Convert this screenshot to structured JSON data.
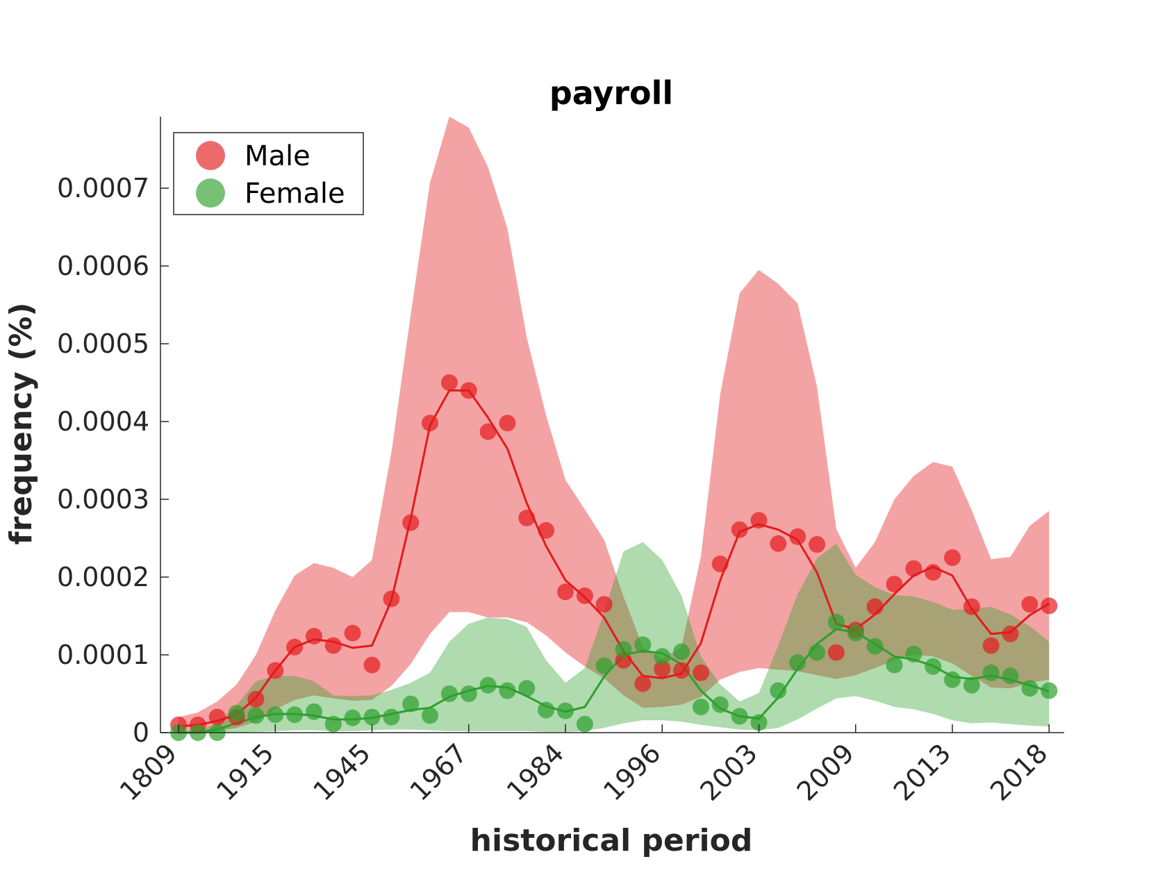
{
  "chart_data": {
    "type": "line",
    "title": "payroll",
    "xlabel": "historical period",
    "ylabel": "frequency (%)",
    "ylim": [
      0,
      0.00079
    ],
    "yticks": [
      {
        "value": 0,
        "label": "0"
      },
      {
        "value": 0.0001,
        "label": "0.0001"
      },
      {
        "value": 0.0002,
        "label": "0.0002"
      },
      {
        "value": 0.0003,
        "label": "0.0003"
      },
      {
        "value": 0.0004,
        "label": "0.0004"
      },
      {
        "value": 0.0005,
        "label": "0.0005"
      },
      {
        "value": 0.0006,
        "label": "0.0006"
      },
      {
        "value": 0.0007,
        "label": "0.0007"
      }
    ],
    "xticks": [
      {
        "index": 0,
        "label": "1809"
      },
      {
        "index": 5,
        "label": "1915"
      },
      {
        "index": 10,
        "label": "1945"
      },
      {
        "index": 15,
        "label": "1967"
      },
      {
        "index": 20,
        "label": "1984"
      },
      {
        "index": 25,
        "label": "1996"
      },
      {
        "index": 30,
        "label": "2003"
      },
      {
        "index": 35,
        "label": "2009"
      },
      {
        "index": 40,
        "label": "2013"
      },
      {
        "index": 45,
        "label": "2018"
      }
    ],
    "grid": false,
    "legend_position": "top-left",
    "series": [
      {
        "name": "Male",
        "color": "#e41a1c",
        "fill_color": "#f4a3a4",
        "points": [
          1e-05,
          1e-05,
          2e-05,
          2e-05,
          4.3e-05,
          8e-05,
          0.00011,
          0.000124,
          0.000112,
          0.000128,
          8.7e-05,
          0.000172,
          0.00027,
          0.000398,
          0.00045,
          0.00044,
          0.000387,
          0.000398,
          0.000276,
          0.00026,
          0.000181,
          0.000176,
          0.000165,
          9.3e-05,
          6.3e-05,
          8.2e-05,
          8e-05,
          7.7e-05,
          0.000217,
          0.000261,
          0.000273,
          0.000243,
          0.000252,
          0.000242,
          0.000103,
          0.000132,
          0.000162,
          0.000191,
          0.000211,
          0.000206,
          0.000225,
          0.000162,
          0.000112,
          0.000127,
          0.000165,
          0.000163
        ],
        "line": [
          8e-06,
          1e-05,
          1.5e-05,
          2.3e-05,
          4.5e-05,
          8e-05,
          0.00011,
          0.00012,
          0.000117,
          0.000109,
          0.000112,
          0.00017,
          0.000275,
          0.000395,
          0.00044,
          0.00044,
          0.000405,
          0.000365,
          0.000295,
          0.00024,
          0.000196,
          0.000174,
          0.000148,
          0.000105,
          7.3e-05,
          7e-05,
          7.6e-05,
          0.000115,
          0.000196,
          0.000258,
          0.000268,
          0.000261,
          0.000248,
          0.000206,
          0.00014,
          0.000133,
          0.000152,
          0.000178,
          0.000202,
          0.000213,
          0.000202,
          0.000159,
          0.000127,
          0.000129,
          0.000151,
          0.000166
        ],
        "band_upper": [
          2e-05,
          2.6e-05,
          4e-05,
          6.2e-05,
          0.0001,
          0.000157,
          0.000202,
          0.000218,
          0.000212,
          0.0002,
          0.000222,
          0.00036,
          0.000537,
          0.000707,
          0.000792,
          0.000778,
          0.000727,
          0.000648,
          0.000508,
          0.000408,
          0.000325,
          0.000287,
          0.000248,
          0.000175,
          0.00011,
          9.5e-05,
          0.00011,
          0.000227,
          0.000435,
          0.000565,
          0.000595,
          0.000577,
          0.000552,
          0.000445,
          0.000262,
          0.000212,
          0.000245,
          0.0003,
          0.00033,
          0.000348,
          0.000342,
          0.000286,
          0.000223,
          0.000226,
          0.000266,
          0.000285
        ],
        "band_lower": [
          0,
          0,
          2e-06,
          6e-06,
          1.4e-05,
          3e-05,
          4.2e-05,
          4.8e-05,
          4.4e-05,
          4.1e-05,
          4.2e-05,
          6e-05,
          8.8e-05,
          0.000127,
          0.000155,
          0.000155,
          0.000148,
          0.000148,
          0.000142,
          0.000125,
          0.000103,
          8.5e-05,
          7e-05,
          4.8e-05,
          3.2e-05,
          3.3e-05,
          3.6e-05,
          4.6e-05,
          6.8e-05,
          7.8e-05,
          8.3e-05,
          8.1e-05,
          7.9e-05,
          7.4e-05,
          6.9e-05,
          7.4e-05,
          8.3e-05,
          9.3e-05,
          0.0001,
          9.8e-05,
          8.9e-05,
          7.3e-05,
          5.8e-05,
          5.7e-05,
          6.4e-05,
          6.8e-05
        ]
      },
      {
        "name": "Female",
        "color": "#2ca02c",
        "fill_color": "#a8d9a3",
        "points": [
          0.0,
          0.0,
          0.0,
          2.5e-05,
          2.2e-05,
          2.3e-05,
          2.3e-05,
          2.7e-05,
          1.1e-05,
          1.9e-05,
          2e-05,
          2e-05,
          3.7e-05,
          2.2e-05,
          5e-05,
          5e-05,
          6.1e-05,
          5.4e-05,
          5.7e-05,
          2.9e-05,
          2.8e-05,
          1.1e-05,
          8.6e-05,
          0.000107,
          0.000113,
          9.8e-05,
          0.000104,
          3.3e-05,
          3.6e-05,
          2.1e-05,
          1.3e-05,
          5.4e-05,
          9e-05,
          0.000103,
          0.000142,
          0.000128,
          0.000111,
          8.7e-05,
          0.000101,
          8.5e-05,
          6.8e-05,
          6.1e-05,
          7.7e-05,
          7.3e-05,
          5.7e-05,
          5.4e-05
        ],
        "line": [
          0.0,
          0.0,
          4e-06,
          1.2e-05,
          2e-05,
          2.4e-05,
          2.4e-05,
          2.2e-05,
          1.7e-05,
          1.7e-05,
          1.9e-05,
          2.4e-05,
          2.9e-05,
          3.2e-05,
          4.6e-05,
          5.4e-05,
          6e-05,
          5.8e-05,
          4.7e-05,
          3.4e-05,
          2.7e-05,
          3.3e-05,
          7.2e-05,
          0.0001,
          0.000105,
          0.000102,
          8.8e-05,
          5.4e-05,
          3.1e-05,
          2.1e-05,
          1.8e-05,
          4.5e-05,
          8.2e-05,
          0.000114,
          0.000133,
          0.000129,
          0.000114,
          9.8e-05,
          9.4e-05,
          8.6e-05,
          7.2e-05,
          6.9e-05,
          7.3e-05,
          6.8e-05,
          6.1e-05,
          5.3e-05
        ],
        "band_upper": [
          0.0,
          2e-06,
          1.2e-05,
          3.5e-05,
          6.6e-05,
          7.3e-05,
          7.3e-05,
          6.6e-05,
          4.8e-05,
          4.7e-05,
          4.8e-05,
          5.5e-05,
          6.4e-05,
          7.7e-05,
          0.000117,
          0.00014,
          0.000148,
          0.000146,
          0.000136,
          9.3e-05,
          6.4e-05,
          8.3e-05,
          0.000155,
          0.000233,
          0.000245,
          0.000222,
          0.000176,
          9.8e-05,
          6.2e-05,
          4e-05,
          5.1e-05,
          0.000112,
          0.000178,
          0.000224,
          0.000243,
          0.000203,
          0.000187,
          0.000177,
          0.000175,
          0.000168,
          0.000158,
          0.000159,
          0.000162,
          0.000152,
          0.000137,
          0.000117
        ],
        "band_lower": [
          0.0,
          0.0,
          0.0,
          0.0,
          1e-06,
          2e-06,
          3e-06,
          3e-06,
          2e-06,
          2e-06,
          3e-06,
          4e-06,
          4e-06,
          3e-06,
          2e-06,
          2e-06,
          2e-06,
          2e-06,
          2e-06,
          1e-06,
          1e-06,
          2e-06,
          6e-06,
          1.2e-05,
          1.6e-05,
          1.6e-05,
          1.4e-05,
          1e-05,
          7e-06,
          4e-06,
          3e-06,
          6e-06,
          1.7e-05,
          3.1e-05,
          4.4e-05,
          4.7e-05,
          4.1e-05,
          3.3e-05,
          3e-05,
          2.4e-05,
          1.6e-05,
          1.2e-05,
          1.3e-05,
          1.1e-05,
          9e-06,
          8e-06
        ]
      }
    ]
  }
}
